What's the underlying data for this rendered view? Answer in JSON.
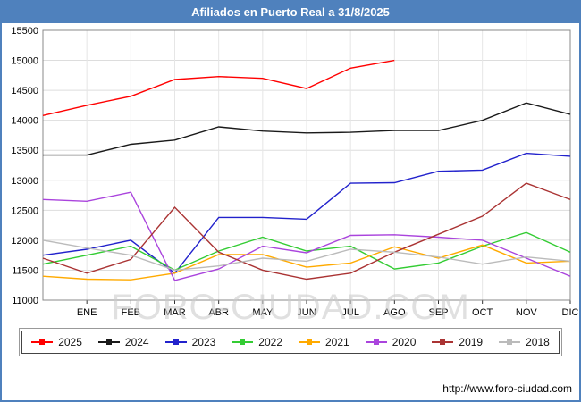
{
  "chart_data": {
    "type": "line",
    "title": "Afiliados en Puerto Real a 31/8/2025",
    "x_labels": [
      "ENE",
      "FEB",
      "MAR",
      "ABR",
      "MAY",
      "JUN",
      "JUL",
      "AGO",
      "SEP",
      "OCT",
      "NOV",
      "DIC"
    ],
    "ylim": [
      11000,
      15500
    ],
    "y_ticks": [
      11000,
      11500,
      12000,
      12500,
      13000,
      13500,
      14000,
      14500,
      15000,
      15500
    ],
    "grid": true,
    "legend_position": "bottom",
    "series": [
      {
        "name": "2025",
        "color": "#ff0000",
        "values": [
          14080,
          14250,
          14400,
          14680,
          14730,
          14700,
          14530,
          14870,
          15000
        ]
      },
      {
        "name": "2024",
        "color": "#1a1a1a",
        "values": [
          13420,
          13420,
          13600,
          13670,
          13890,
          13820,
          13790,
          13800,
          13830,
          13830,
          14000,
          14290,
          14100
        ]
      },
      {
        "name": "2023",
        "color": "#2222cc",
        "values": [
          11750,
          11850,
          12000,
          11450,
          12380,
          12380,
          12350,
          12950,
          12960,
          13150,
          13170,
          13450,
          13400
        ]
      },
      {
        "name": "2022",
        "color": "#33cc33",
        "values": [
          11600,
          11750,
          11900,
          11500,
          11820,
          12050,
          11820,
          11900,
          11520,
          11620,
          11900,
          12130,
          11800
        ]
      },
      {
        "name": "2021",
        "color": "#ffaa00",
        "values": [
          11400,
          11350,
          11340,
          11450,
          11760,
          11760,
          11550,
          11620,
          11890,
          11700,
          11920,
          11620,
          11650
        ]
      },
      {
        "name": "2020",
        "color": "#aa44dd",
        "values": [
          12680,
          12650,
          12800,
          11330,
          11520,
          11900,
          11790,
          12080,
          12090,
          12050,
          12000,
          11700,
          11400
        ]
      },
      {
        "name": "2019",
        "color": "#aa3333",
        "values": [
          11700,
          11450,
          11680,
          12550,
          11800,
          11500,
          11350,
          11450,
          11800,
          12100,
          12400,
          12950,
          12680
        ]
      },
      {
        "name": "2018",
        "color": "#bbbbbb",
        "values": [
          12000,
          11870,
          11750,
          11500,
          11570,
          11700,
          11650,
          11850,
          11800,
          11720,
          11600,
          11720,
          11650
        ]
      }
    ]
  },
  "watermark": {
    "text": "FORO-CIUDAD.COM"
  },
  "footer": {
    "url": "http://www.foro-ciudad.com"
  },
  "colors": {
    "titlebar_bg": "#4f81bd",
    "frame_border": "#4f81bd",
    "grid": "#dddddd",
    "plot_border": "#888888",
    "watermark": "#cccccc"
  }
}
